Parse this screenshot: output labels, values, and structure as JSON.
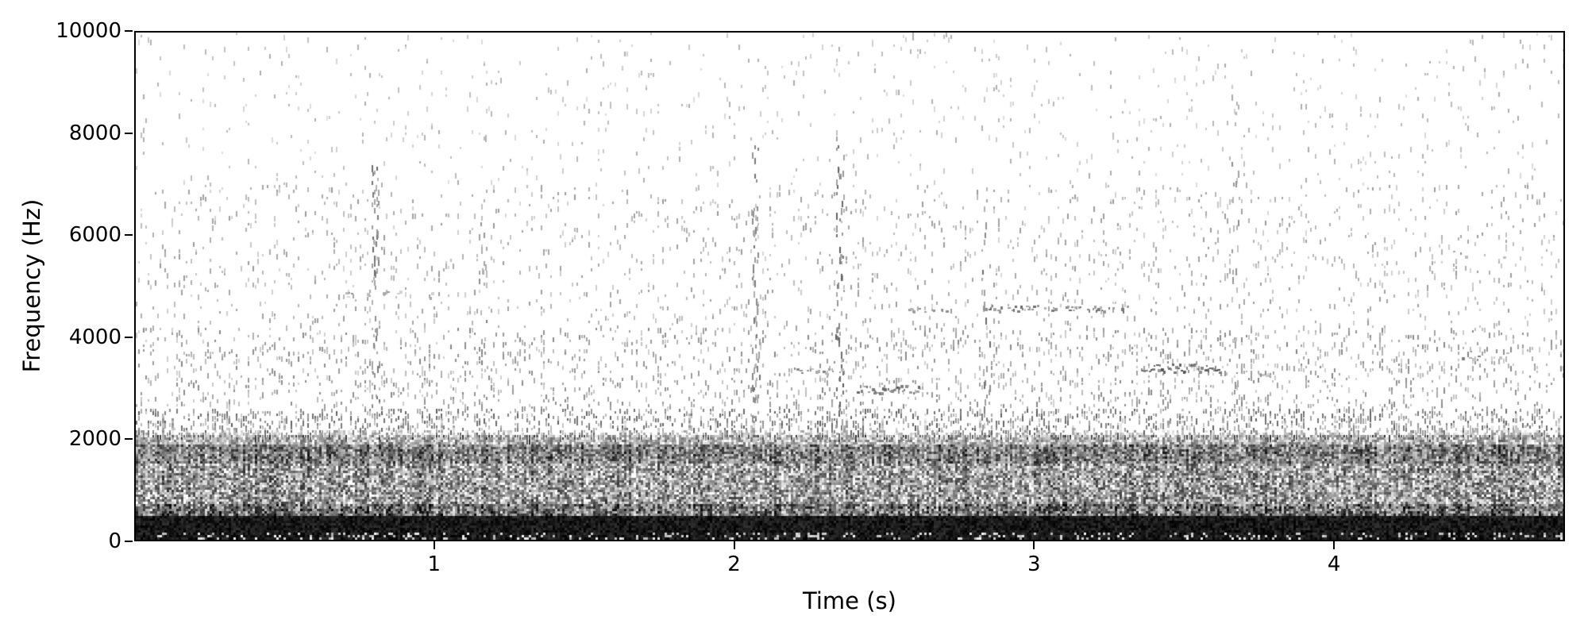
{
  "figure": {
    "background_color": "#ffffff",
    "text_color": "#000000",
    "spine_color": "#000000"
  },
  "chart_data": {
    "type": "heatmap",
    "subtype": "spectrogram",
    "title": "",
    "xlabel": "Time (s)",
    "ylabel": "Frequency (Hz)",
    "xlim": [
      0,
      4.77
    ],
    "ylim": [
      0,
      10000
    ],
    "xticks": [
      1,
      2,
      3,
      4
    ],
    "yticks": [
      0,
      2000,
      4000,
      6000,
      8000,
      10000
    ],
    "grid": false,
    "legend": false,
    "colormap": "grayscale reversed (white = low energy, black = high energy)",
    "noise_seed": 42,
    "description": "Audio spectrogram: solid black energy band below ~450 Hz, dense mottled gray speckle 450-2000 Hz with darker stripe near 1500-1900 Hz and ragged top edge near 2050 Hz, sparse speckle above 2000 Hz with transient vertical click streaks and short dotted tonal bands",
    "bands": [
      {
        "f0": 0,
        "f1": 450,
        "base": 0.9,
        "var": 0.1,
        "density": 1.0
      },
      {
        "f0": 450,
        "f1": 700,
        "base": 0.55,
        "var": 0.35,
        "density": 1.0
      },
      {
        "f0": 700,
        "f1": 1500,
        "base": 0.38,
        "var": 0.36,
        "density": 1.0
      },
      {
        "f0": 1500,
        "f1": 1900,
        "base": 0.5,
        "var": 0.32,
        "density": 1.0
      },
      {
        "f0": 1900,
        "f1": 2080,
        "base": 0.3,
        "var": 0.28,
        "density": 0.9
      },
      {
        "f0": 2080,
        "f1": 2600,
        "base": 0.2,
        "var": 0.22,
        "density": 0.22
      },
      {
        "f0": 2600,
        "f1": 4200,
        "base": 0.18,
        "var": 0.15,
        "density": 0.09
      },
      {
        "f0": 4200,
        "f1": 7000,
        "base": 0.16,
        "var": 0.12,
        "density": 0.045
      },
      {
        "f0": 7000,
        "f1": 10000,
        "base": 0.13,
        "var": 0.1,
        "density": 0.02
      }
    ],
    "features": [
      {
        "type": "vstreak",
        "t": 0.8,
        "f0": 2100,
        "f1": 7900,
        "density": 0.3,
        "dark": 0.45
      },
      {
        "type": "vstreak",
        "t": 1.16,
        "f0": 2100,
        "f1": 8400,
        "density": 0.16,
        "dark": 0.35
      },
      {
        "type": "vstreak",
        "t": 2.07,
        "f0": 2100,
        "f1": 7800,
        "density": 0.3,
        "dark": 0.42
      },
      {
        "type": "vstreak",
        "t": 2.35,
        "f0": 2100,
        "f1": 8050,
        "density": 0.3,
        "dark": 0.5
      },
      {
        "type": "vstreak",
        "t": 2.84,
        "f0": 2100,
        "f1": 6300,
        "density": 0.26,
        "dark": 0.45
      },
      {
        "type": "vstreak",
        "t": 3.67,
        "f0": 2100,
        "f1": 9300,
        "density": 0.11,
        "dark": 0.33
      },
      {
        "type": "hband",
        "t0": 0.7,
        "t1": 1.0,
        "f": 4850,
        "bw": 140,
        "density": 0.28,
        "dark": 0.3
      },
      {
        "type": "hband",
        "t0": 2.2,
        "t1": 2.36,
        "f": 3350,
        "bw": 120,
        "density": 0.45,
        "dark": 0.38
      },
      {
        "type": "hband",
        "t0": 2.41,
        "t1": 2.63,
        "f": 2980,
        "bw": 150,
        "density": 0.7,
        "dark": 0.5
      },
      {
        "type": "hband",
        "t0": 2.58,
        "t1": 2.72,
        "f": 4550,
        "bw": 90,
        "density": 0.35,
        "dark": 0.33
      },
      {
        "type": "hband",
        "t0": 2.83,
        "t1": 3.32,
        "f": 4580,
        "bw": 120,
        "density": 0.55,
        "dark": 0.45
      },
      {
        "type": "hband",
        "t0": 3.36,
        "t1": 3.62,
        "f": 3400,
        "bw": 170,
        "density": 0.9,
        "dark": 0.55
      },
      {
        "type": "hband",
        "t0": 3.6,
        "t1": 3.82,
        "f": 3300,
        "bw": 100,
        "density": 0.3,
        "dark": 0.33
      },
      {
        "type": "hband",
        "t0": 4.43,
        "t1": 4.66,
        "f": 3650,
        "bw": 260,
        "density": 0.3,
        "dark": 0.38
      },
      {
        "type": "hband",
        "t0": 4.4,
        "t1": 4.6,
        "f": 5650,
        "bw": 160,
        "density": 0.12,
        "dark": 0.28
      }
    ]
  }
}
